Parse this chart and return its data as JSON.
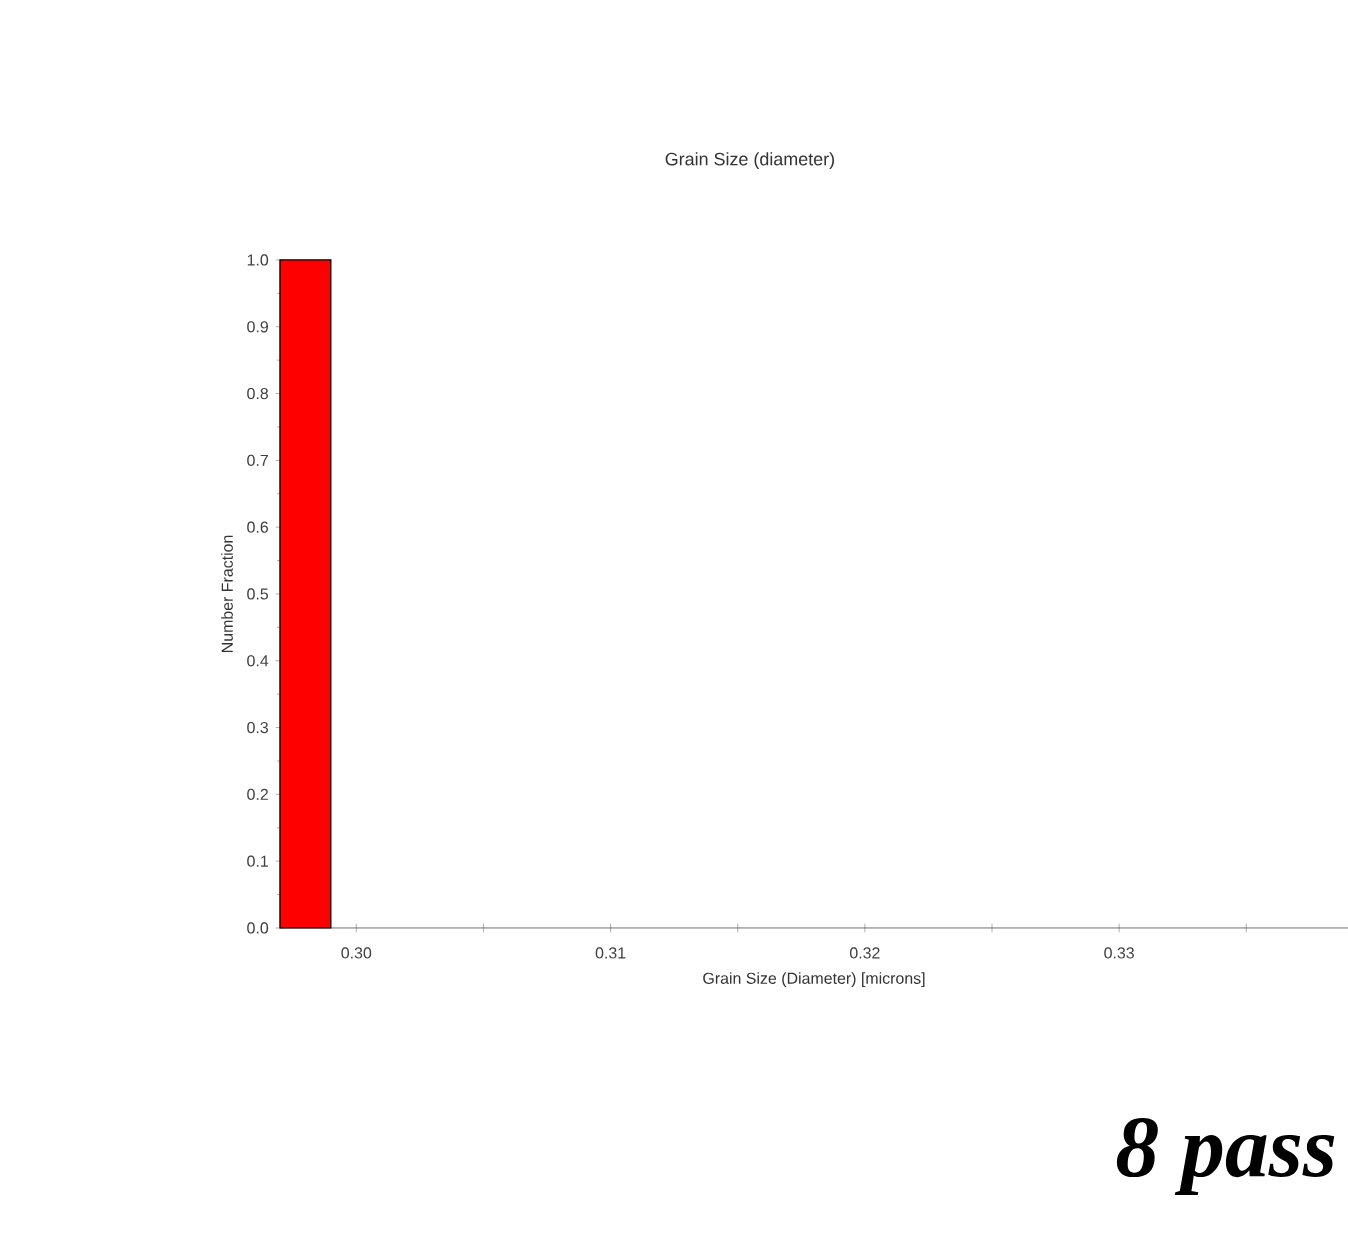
{
  "chart_data": {
    "type": "histogram",
    "title": "Grain Size (diameter)",
    "xlabel": "Grain Size (Diameter) [microns]",
    "ylabel": "Number Fraction",
    "bins": [
      0.297,
      0.299
    ],
    "values": [
      1.0
    ],
    "color": "#ff0000",
    "xlim": [
      0.297,
      0.339
    ],
    "ylim": [
      0,
      1
    ],
    "xticks": [
      {
        "value": 0.3,
        "label": "0.30"
      },
      {
        "value": 0.305,
        "label": null
      },
      {
        "value": 0.31,
        "label": "0.31"
      },
      {
        "value": 0.315,
        "label": null
      },
      {
        "value": 0.32,
        "label": "0.32"
      },
      {
        "value": 0.325,
        "label": null
      },
      {
        "value": 0.33,
        "label": "0.33"
      },
      {
        "value": 0.335,
        "label": null
      }
    ],
    "yticks": [
      {
        "value": 0,
        "label": "0.0"
      },
      {
        "value": 0.1,
        "label": "0.1"
      },
      {
        "value": 0.2,
        "label": "0.2"
      },
      {
        "value": 0.3,
        "label": "0.3"
      },
      {
        "value": 0.4,
        "label": "0.4"
      },
      {
        "value": 0.5,
        "label": "0.5"
      },
      {
        "value": 0.6,
        "label": "0.6"
      },
      {
        "value": 0.7,
        "label": "0.7"
      },
      {
        "value": 0.8,
        "label": "0.8"
      },
      {
        "value": 0.9,
        "label": "0.9"
      },
      {
        "value": 1.0,
        "label": "1.0"
      }
    ],
    "annotations": [
      "8 pass"
    ],
    "grid": false
  }
}
